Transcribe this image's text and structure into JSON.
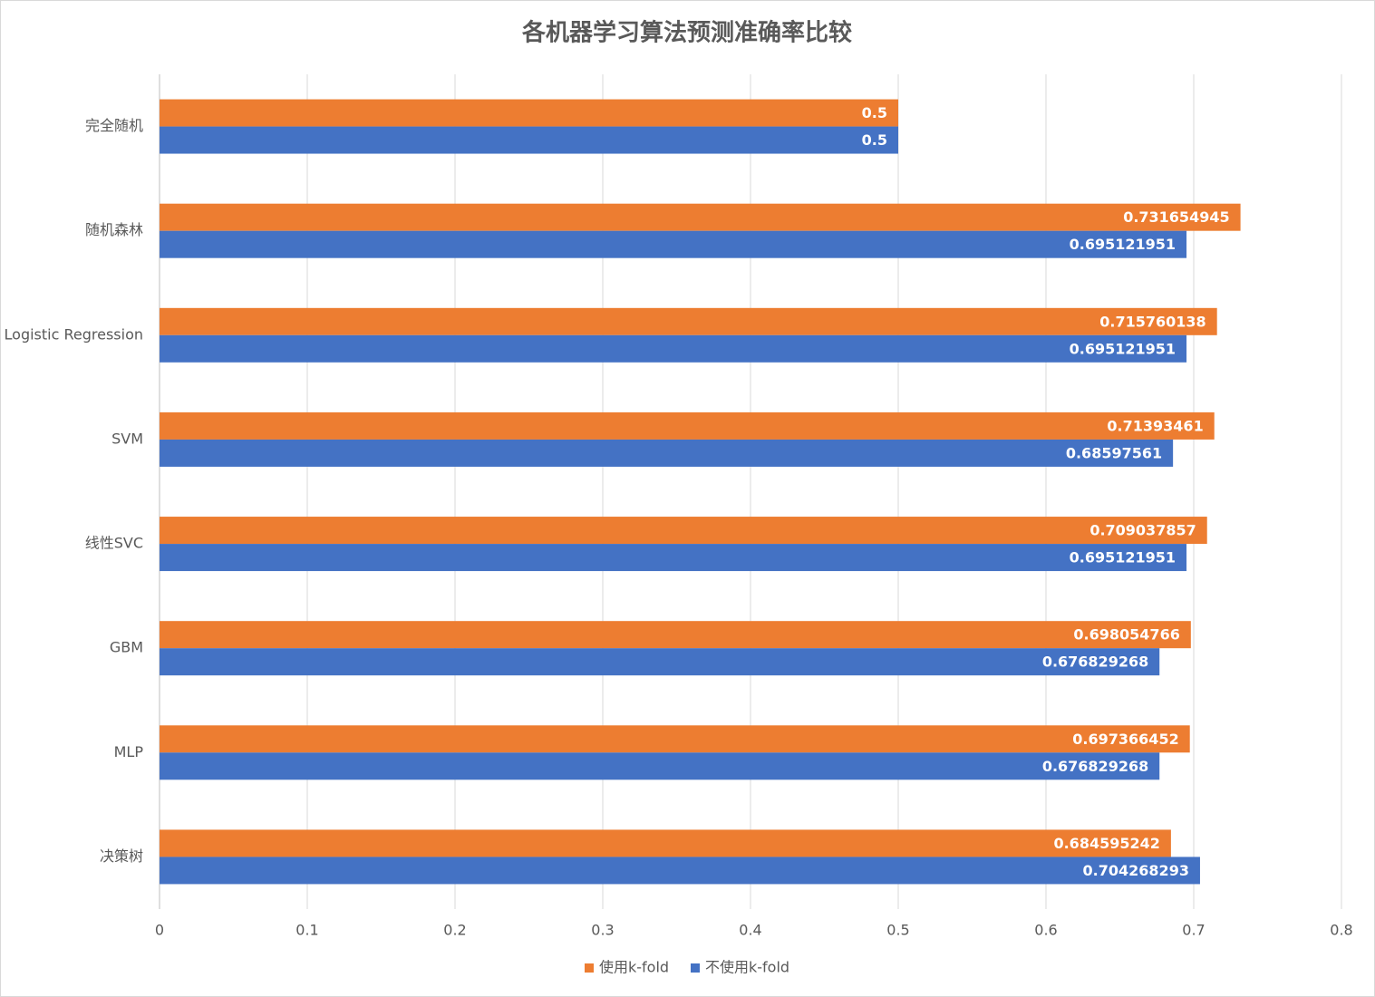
{
  "chart_data": {
    "type": "barh",
    "title": "各机器学习算法预测准确率比较",
    "categories": [
      "完全随机",
      "随机森林",
      "Logistic Regression",
      "SVM",
      "线性SVC",
      "GBM",
      "MLP",
      "决策树"
    ],
    "series": [
      {
        "name": "使用k-fold",
        "color": "#ED7D31",
        "values": [
          0.5,
          0.731654945,
          0.715760138,
          0.71393461,
          0.709037857,
          0.698054766,
          0.697366452,
          0.684595242
        ]
      },
      {
        "name": "不使用k-fold",
        "color": "#4472C4",
        "values": [
          0.5,
          0.695121951,
          0.695121951,
          0.68597561,
          0.695121951,
          0.676829268,
          0.676829268,
          0.704268293
        ]
      }
    ],
    "xlim": [
      0,
      0.8
    ],
    "xticks": [
      0,
      0.1,
      0.2,
      0.3,
      0.4,
      0.5,
      0.6,
      0.7,
      0.8
    ],
    "grid": true,
    "legend": "bottom"
  }
}
